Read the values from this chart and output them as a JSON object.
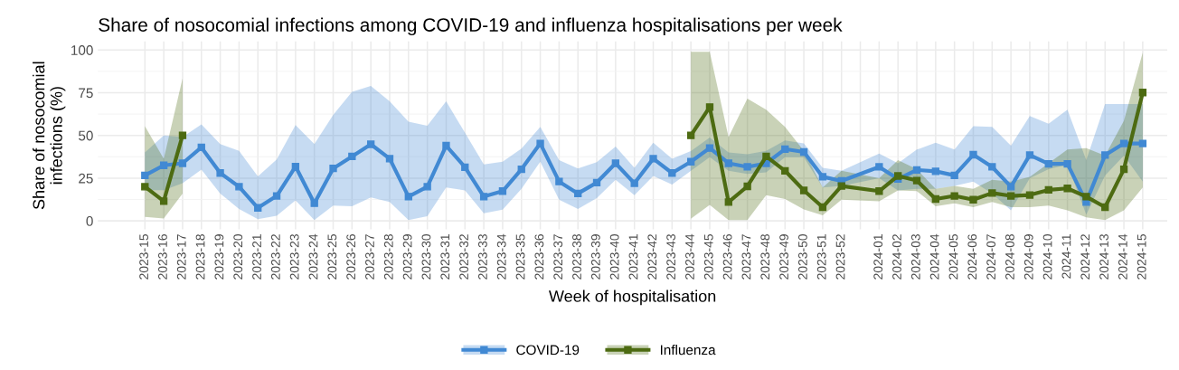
{
  "chart_data": {
    "type": "line",
    "title": "Share of nosocomial infections among COVID-19 and influenza hospitalisations per week",
    "xlabel": "Week of hospitalisation",
    "ylabel": "Share of nosocomial\ninfections (%)",
    "categories": [
      "2023-15",
      "2023-16",
      "2023-17",
      "2023-18",
      "2023-19",
      "2023-20",
      "2023-21",
      "2023-22",
      "2023-23",
      "2023-24",
      "2023-25",
      "2023-26",
      "2023-27",
      "2023-28",
      "2023-29",
      "2023-30",
      "2023-31",
      "2023-32",
      "2023-33",
      "2023-34",
      "2023-35",
      "2023-36",
      "2023-37",
      "2023-38",
      "2023-39",
      "2023-40",
      "2023-41",
      "2023-42",
      "2023-43",
      "2023-44",
      "2023-45",
      "2023-46",
      "2023-47",
      "2023-48",
      "2023-49",
      "2023-50",
      "2023-51",
      "2023-52",
      null,
      "2024-01",
      "2024-02",
      "2024-03",
      "2024-04",
      "2024-05",
      "2024-06",
      "2024-07",
      "2024-08",
      "2024-09",
      "2024-10",
      "2024-11",
      "2024-12",
      "2024-13",
      "2024-14",
      "2024-15"
    ],
    "series": [
      {
        "name": "COVID-19",
        "color": "#4189d3",
        "values": [
          26.6,
          32.5,
          33.7,
          43,
          28,
          20,
          7.6,
          14.6,
          31.8,
          10.3,
          30.7,
          37.7,
          44.8,
          36.4,
          14.2,
          20,
          44,
          31.4,
          14.2,
          17.4,
          30.2,
          45.3,
          23,
          16,
          22.4,
          33.7,
          22,
          36.4,
          28,
          34.6,
          42.6,
          33.7,
          31.6,
          33.7,
          42,
          40.3,
          25.8,
          23.4,
          null,
          31.6,
          24.5,
          29.8,
          29,
          26.6,
          38.7,
          31.6,
          20,
          38.5,
          33.4,
          33.4,
          11,
          38.5,
          45.3,
          45.3
        ],
        "lower": [
          18,
          18,
          22,
          30,
          16,
          7,
          1,
          3,
          12,
          0.5,
          9,
          8.5,
          13.7,
          11,
          0.5,
          2.7,
          19.5,
          17.8,
          4.4,
          6.6,
          18.7,
          34.6,
          12.4,
          7,
          13.3,
          24,
          15,
          26.3,
          21.3,
          29.3,
          37.3,
          29.3,
          27.5,
          28.4,
          37.3,
          37.3,
          19.5,
          20.4,
          null,
          24.9,
          17.8,
          18.7,
          18.7,
          20.4,
          23,
          16,
          6.2,
          24.9,
          30.2,
          32.9,
          3.6,
          26.6,
          38.2,
          23
        ],
        "upper": [
          40,
          50,
          49,
          56.5,
          45,
          41,
          26,
          36,
          56,
          45,
          62,
          75.5,
          79,
          70,
          58,
          55.6,
          70,
          51.5,
          33,
          34.6,
          42.3,
          55,
          35.5,
          30.7,
          34.3,
          43.5,
          31,
          45.8,
          36.4,
          40.9,
          48.8,
          40,
          39,
          41,
          47,
          45.3,
          31,
          29.3,
          null,
          39.4,
          33.7,
          41.7,
          45.8,
          41.7,
          55.4,
          55,
          44,
          61.3,
          56.8,
          65,
          35.5,
          68.4,
          68.4,
          68.4
        ]
      },
      {
        "name": "Influenza",
        "color": "#4d6b12",
        "values": [
          20,
          11.5,
          50,
          null,
          null,
          null,
          null,
          null,
          null,
          null,
          null,
          null,
          null,
          null,
          null,
          null,
          null,
          null,
          null,
          null,
          null,
          null,
          null,
          null,
          null,
          null,
          null,
          null,
          null,
          50,
          66.6,
          11,
          20.2,
          37.7,
          29.3,
          17.8,
          8,
          20.4,
          null,
          17.4,
          26.3,
          23.6,
          12.8,
          14.6,
          12.4,
          16.3,
          14.6,
          15.1,
          18.1,
          19,
          14.2,
          8,
          30.2,
          75.1
        ],
        "lower": [
          2.3,
          1.4,
          16,
          null,
          null,
          null,
          null,
          null,
          null,
          null,
          null,
          null,
          null,
          null,
          null,
          null,
          null,
          null,
          null,
          null,
          null,
          null,
          null,
          null,
          null,
          null,
          null,
          null,
          null,
          1.2,
          9.4,
          0.5,
          0.5,
          15,
          12.8,
          6.7,
          3.2,
          12.4,
          null,
          11.5,
          17.8,
          17.4,
          8.5,
          10.3,
          8,
          11,
          8,
          8,
          8.9,
          6.2,
          2.1,
          0.5,
          6.2,
          19.5
        ],
        "upper": [
          55.4,
          36.4,
          83.5,
          null,
          null,
          null,
          null,
          null,
          null,
          null,
          null,
          null,
          null,
          null,
          null,
          null,
          null,
          null,
          null,
          null,
          null,
          null,
          null,
          null,
          null,
          null,
          null,
          null,
          null,
          99,
          99,
          49,
          71.6,
          65,
          55,
          41,
          19.5,
          29.3,
          null,
          25,
          35.5,
          30.2,
          18.7,
          20.4,
          18.7,
          24,
          23,
          25.8,
          33.7,
          41.7,
          42.6,
          38.2,
          58.6,
          98.6
        ]
      }
    ],
    "ylim": [
      -5,
      105
    ],
    "yticks": [
      0,
      25,
      50,
      75,
      100
    ],
    "grid": true,
    "legend": "bottom",
    "marker": "square",
    "line_style": "solid"
  }
}
